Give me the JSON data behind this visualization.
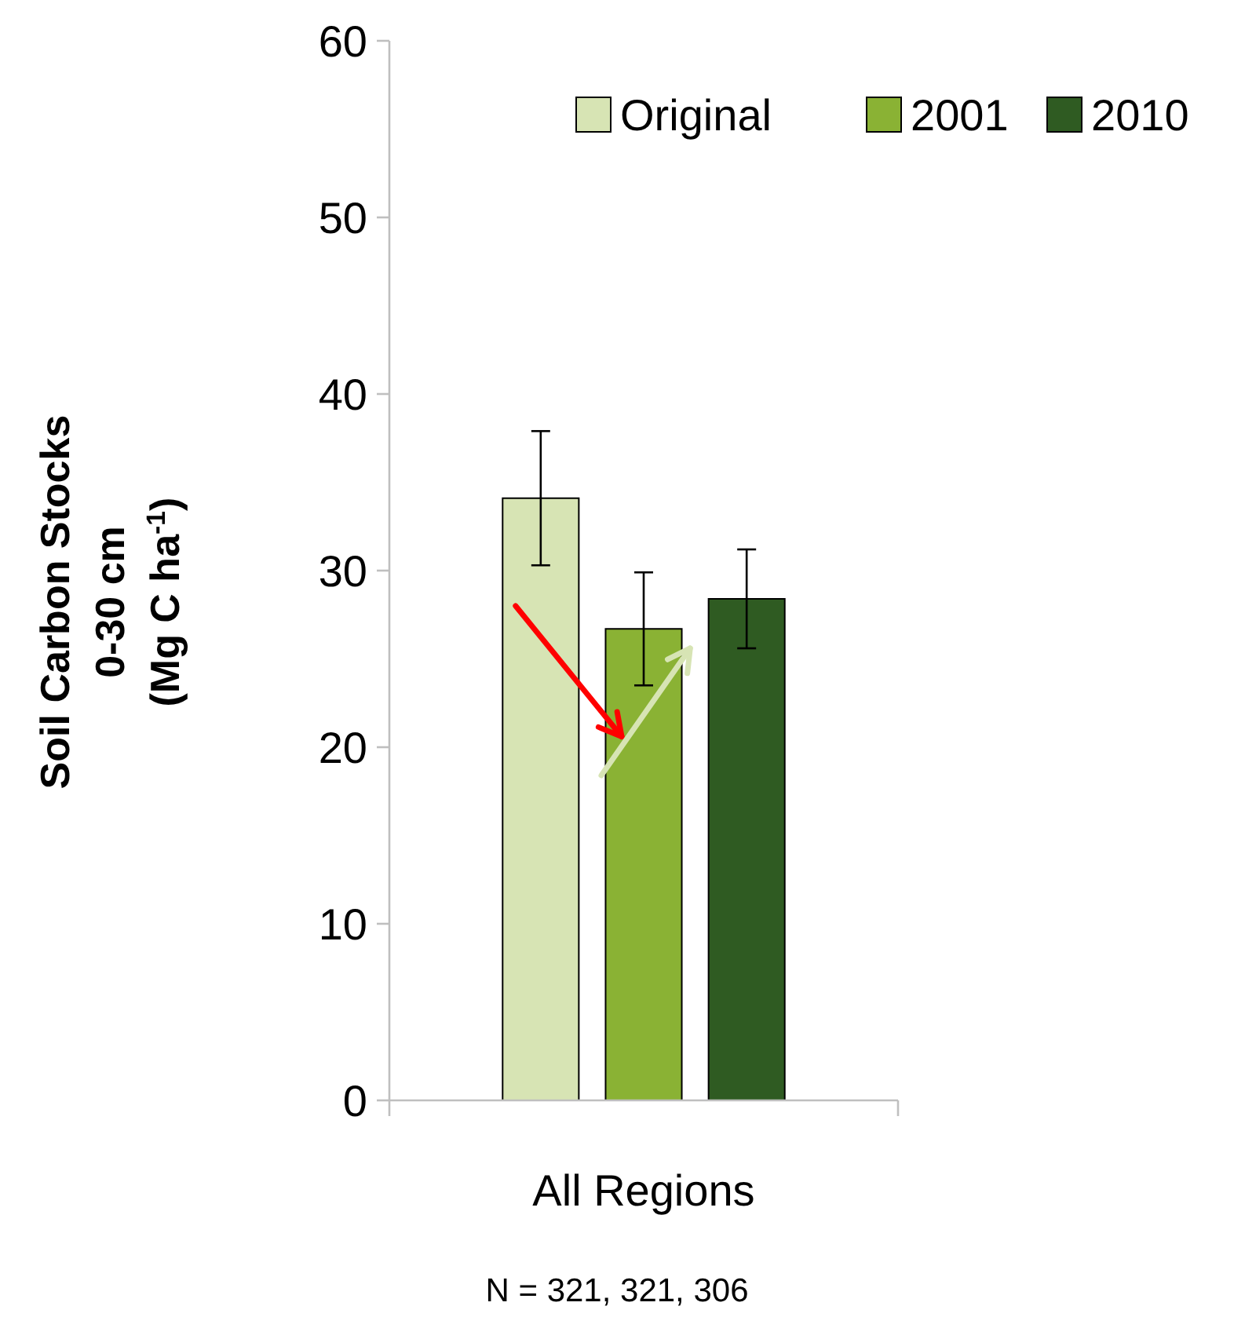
{
  "chart_data": {
    "type": "bar",
    "categories": [
      "All Regions"
    ],
    "ylabel": "Soil Carbon Stocks\n0-30 cm\n(Mg C ha$^{-1}$)",
    "series": [
      {
        "name": "Original",
        "color": "#d7e4b4",
        "values": [
          34.1
        ],
        "errors": [
          3.8
        ]
      },
      {
        "name": "2001",
        "color": "#8ab234",
        "values": [
          26.7
        ],
        "errors": [
          3.2
        ]
      },
      {
        "name": "2010",
        "color": "#2f5b22",
        "values": [
          28.4
        ],
        "errors": [
          2.8
        ]
      }
    ],
    "ylim": [
      0,
      60
    ],
    "yticks": [
      0,
      10,
      20,
      30,
      40,
      50,
      60
    ],
    "grid": false,
    "legend": "top right",
    "annotations": [
      "N = 321, 321, 306"
    ]
  }
}
